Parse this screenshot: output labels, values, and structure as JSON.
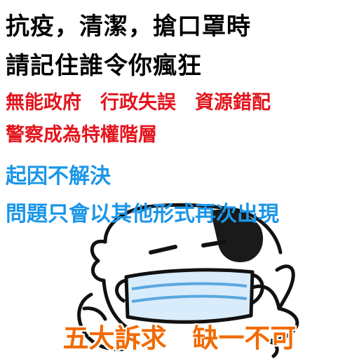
{
  "lines": [
    "抗疫，清潔，搶口罩時",
    "請記住誰令你瘋狂",
    "無能政府　行政失誤　資源錯配",
    "警察成為特權階層",
    "起因不解決",
    "問題只會以其他形式再次出現"
  ],
  "bottom_slogan": "五大訴求　缺一不可",
  "colors": {
    "black_text": "#000000",
    "red_text": "#e3141c",
    "blue_text": "#1a96e8",
    "orange_text": "#f26a00",
    "mask_fill": "#d9ecfb"
  },
  "illustration": {
    "subject": "cartoon-figure-wearing-face-mask-thumbs-up"
  }
}
